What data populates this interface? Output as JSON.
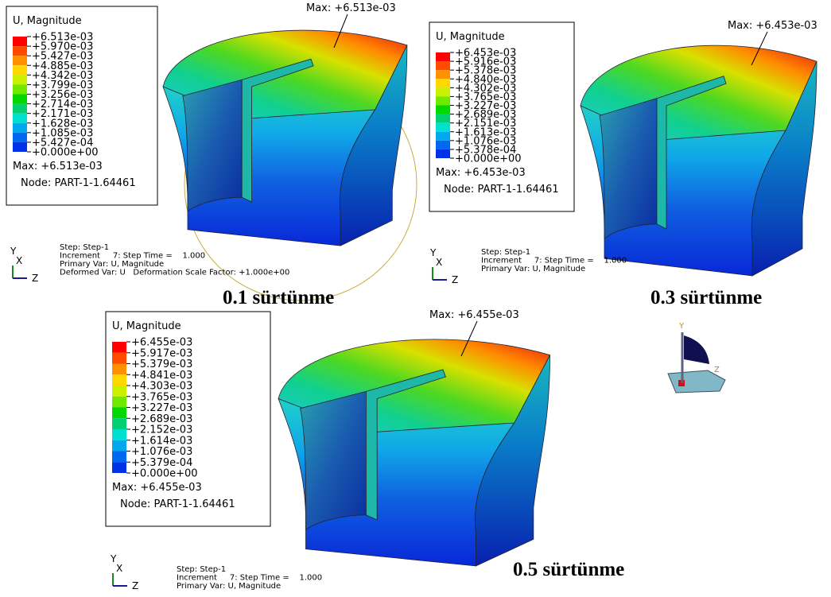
{
  "panels": [
    {
      "legend": {
        "title": "U, Magnitude",
        "values": [
          "+6.513e-03",
          "+5.970e-03",
          "+5.427e-03",
          "+4.885e-03",
          "+4.342e-03",
          "+3.799e-03",
          "+3.256e-03",
          "+2.714e-03",
          "+2.171e-03",
          "+1.628e-03",
          "+1.085e-03",
          "+5.427e-04",
          "+0.000e+00"
        ],
        "max": "Max: +6.513e-03",
        "node": "Node: PART-1-1.64461"
      },
      "max_callout": "Max: +6.513e-03",
      "step_lines": [
        "Step: Step-1",
        "Increment     7: Step Time =    1.000",
        "Primary Var: U, Magnitude",
        "Deformed Var: U   Deformation Scale Factor: +1.000e+00"
      ],
      "triad": {
        "y": "Y",
        "x": "X",
        "z": "Z"
      },
      "caption": "0.1 sürtünme"
    },
    {
      "legend": {
        "title": "U, Magnitude",
        "values": [
          "+6.453e-03",
          "+5.916e-03",
          "+5.378e-03",
          "+4.840e-03",
          "+4.302e-03",
          "+3.765e-03",
          "+3.227e-03",
          "+2.689e-03",
          "+2.151e-03",
          "+1.613e-03",
          "+1.076e-03",
          "+5.378e-04",
          "+0.000e+00"
        ],
        "max": "Max: +6.453e-03",
        "node": "Node: PART-1-1.64461"
      },
      "max_callout": "Max: +6.453e-03",
      "step_lines": [
        "Step: Step-1",
        "Increment     7: Step Time =    1.000",
        "Primary Var: U, Magnitude"
      ],
      "triad": {
        "y": "Y",
        "x": "X",
        "z": "Z"
      },
      "caption": "0.3 sürtünme"
    },
    {
      "legend": {
        "title": "U, Magnitude",
        "values": [
          "+6.455e-03",
          "+5.917e-03",
          "+5.379e-03",
          "+4.841e-03",
          "+4.303e-03",
          "+3.765e-03",
          "+3.227e-03",
          "+2.689e-03",
          "+2.152e-03",
          "+1.614e-03",
          "+1.076e-03",
          "+5.379e-04",
          "+0.000e+00"
        ],
        "max": "Max: +6.455e-03",
        "node": "Node: PART-1-1.64461"
      },
      "max_callout": "Max: +6.455e-03",
      "step_lines": [
        "Step: Step-1",
        "Increment     7: Step Time =    1.000",
        "Primary Var: U, Magnitude"
      ],
      "triad": {
        "y": "Y",
        "x": "X",
        "z": "Z"
      },
      "caption": "0.5 sürtünme"
    }
  ],
  "view_triad": {
    "y": "Y",
    "z": "Z"
  }
}
